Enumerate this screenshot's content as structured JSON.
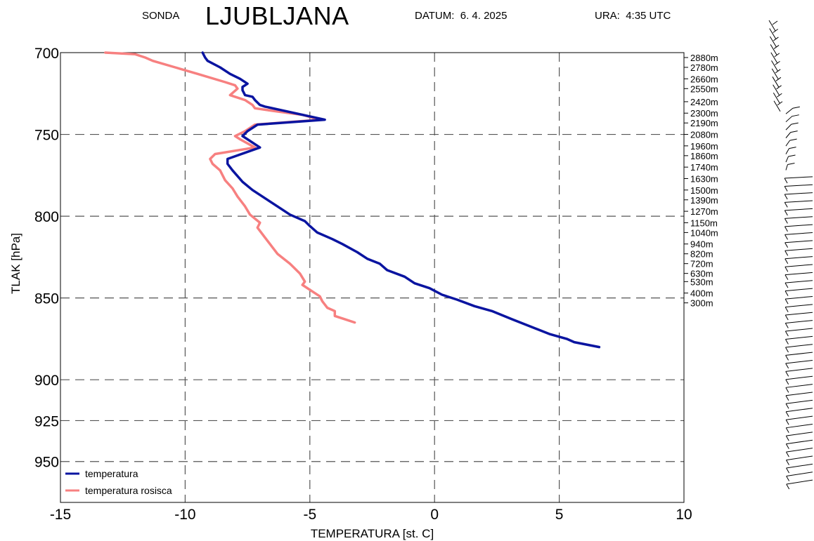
{
  "header": {
    "station_label": "SONDA",
    "station_name": "LJUBLJANA",
    "date_label": "DATUM:",
    "date_value": "6. 4. 2025",
    "time_label": "URA:",
    "time_value": "4:35 UTC"
  },
  "chart_data": {
    "type": "line",
    "xlabel": "TEMPERATURA [st. C]",
    "ylabel": "TLAK [hPa]",
    "xlim": [
      -15,
      10
    ],
    "ylim": [
      700,
      975
    ],
    "y_inverted": true,
    "x_ticks": [
      -15,
      -10,
      -5,
      0,
      5,
      10
    ],
    "y_ticks": [
      700,
      750,
      800,
      850,
      900,
      925,
      950
    ],
    "grid": "dashed",
    "legend_position": "bottom-left",
    "height_labels": [
      {
        "p": 703,
        "label": "2880m"
      },
      {
        "p": 709,
        "label": "2780m"
      },
      {
        "p": 716,
        "label": "2660m"
      },
      {
        "p": 722,
        "label": "2550m"
      },
      {
        "p": 730,
        "label": "2420m"
      },
      {
        "p": 737,
        "label": "2300m"
      },
      {
        "p": 743,
        "label": "2190m"
      },
      {
        "p": 750,
        "label": "2080m"
      },
      {
        "p": 757,
        "label": "1960m"
      },
      {
        "p": 763,
        "label": "1860m"
      },
      {
        "p": 770,
        "label": "1740m"
      },
      {
        "p": 777,
        "label": "1630m"
      },
      {
        "p": 784,
        "label": "1500m"
      },
      {
        "p": 790,
        "label": "1390m"
      },
      {
        "p": 797,
        "label": "1270m"
      },
      {
        "p": 804,
        "label": "1150m"
      },
      {
        "p": 810,
        "label": "1040m"
      },
      {
        "p": 817,
        "label": "940m"
      },
      {
        "p": 823,
        "label": "820m"
      },
      {
        "p": 829,
        "label": "720m"
      },
      {
        "p": 835,
        "label": "630m"
      },
      {
        "p": 840,
        "label": "530m"
      },
      {
        "p": 847,
        "label": "400m"
      },
      {
        "p": 853,
        "label": "300m"
      }
    ],
    "series": [
      {
        "name": "temperatura",
        "color": "#0a14a0",
        "points": [
          [
            -9.3,
            700
          ],
          [
            -9.2,
            703
          ],
          [
            -9.1,
            705
          ],
          [
            -8.6,
            709
          ],
          [
            -8.2,
            713
          ],
          [
            -7.8,
            716
          ],
          [
            -7.5,
            719
          ],
          [
            -7.7,
            721
          ],
          [
            -7.7,
            723
          ],
          [
            -7.6,
            726
          ],
          [
            -7.3,
            727
          ],
          [
            -7.2,
            729
          ],
          [
            -7.0,
            732
          ],
          [
            -6.8,
            733
          ],
          [
            -4.4,
            741
          ],
          [
            -7.1,
            744
          ],
          [
            -7.5,
            748
          ],
          [
            -7.7,
            751
          ],
          [
            -7.5,
            753
          ],
          [
            -7.0,
            758
          ],
          [
            -8.3,
            765
          ],
          [
            -8.3,
            768
          ],
          [
            -8.1,
            772
          ],
          [
            -7.7,
            779
          ],
          [
            -7.3,
            784
          ],
          [
            -6.7,
            790
          ],
          [
            -6.1,
            796
          ],
          [
            -5.8,
            799
          ],
          [
            -5.2,
            803
          ],
          [
            -5.0,
            806
          ],
          [
            -4.7,
            810
          ],
          [
            -4.1,
            814
          ],
          [
            -3.7,
            817
          ],
          [
            -3.1,
            822
          ],
          [
            -2.7,
            826
          ],
          [
            -2.2,
            829
          ],
          [
            -1.9,
            833
          ],
          [
            -1.2,
            837
          ],
          [
            -0.8,
            841
          ],
          [
            -0.2,
            844
          ],
          [
            0.3,
            848
          ],
          [
            0.9,
            851
          ],
          [
            1.6,
            855
          ],
          [
            2.3,
            858
          ],
          [
            3.1,
            863
          ],
          [
            3.6,
            866
          ],
          [
            4.1,
            869
          ],
          [
            4.6,
            872
          ],
          [
            5.3,
            875
          ],
          [
            5.6,
            877
          ],
          [
            6.6,
            880
          ]
        ]
      },
      {
        "name": "temperatura rosisca",
        "color": "#f78080",
        "points": [
          [
            -13.2,
            700
          ],
          [
            -12.0,
            701
          ],
          [
            -11.6,
            703
          ],
          [
            -11.3,
            705
          ],
          [
            -10.4,
            709
          ],
          [
            -9.5,
            713
          ],
          [
            -8.4,
            718
          ],
          [
            -8.0,
            720
          ],
          [
            -7.9,
            722
          ],
          [
            -8.2,
            726
          ],
          [
            -8.0,
            727
          ],
          [
            -7.6,
            729
          ],
          [
            -7.3,
            732
          ],
          [
            -7.2,
            734
          ],
          [
            -6.3,
            736
          ],
          [
            -5.3,
            738
          ],
          [
            -4.6,
            741
          ],
          [
            -7.2,
            744
          ],
          [
            -7.6,
            748
          ],
          [
            -8.0,
            751
          ],
          [
            -7.8,
            753
          ],
          [
            -7.2,
            758
          ],
          [
            -8.8,
            762
          ],
          [
            -9.0,
            765
          ],
          [
            -8.9,
            768
          ],
          [
            -8.6,
            772
          ],
          [
            -8.4,
            778
          ],
          [
            -8.1,
            783
          ],
          [
            -7.9,
            788
          ],
          [
            -7.6,
            794
          ],
          [
            -7.4,
            799
          ],
          [
            -7.0,
            804
          ],
          [
            -7.1,
            807
          ],
          [
            -6.8,
            813
          ],
          [
            -6.5,
            819
          ],
          [
            -6.3,
            823
          ],
          [
            -5.8,
            829
          ],
          [
            -5.4,
            835
          ],
          [
            -5.2,
            840
          ],
          [
            -5.3,
            842
          ],
          [
            -4.9,
            846
          ],
          [
            -4.6,
            849
          ],
          [
            -4.5,
            852
          ],
          [
            -4.3,
            856
          ],
          [
            -4.0,
            858
          ],
          [
            -4.0,
            861
          ],
          [
            -3.6,
            863
          ],
          [
            -3.2,
            865
          ]
        ]
      }
    ]
  },
  "wind": {
    "color": "#000000"
  }
}
